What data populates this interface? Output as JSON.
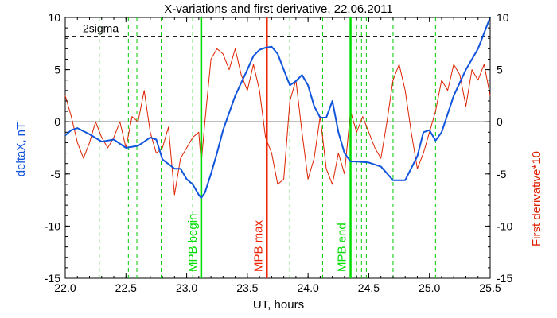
{
  "chart_data": {
    "type": "line",
    "title": "X-variations and first derivative, 22.06.2011",
    "xlabel": "UT, hours",
    "ylabel_left": "deltaX, nT",
    "ylabel_right": "First derivative*10",
    "xlim": [
      22.0,
      25.5
    ],
    "ylim_left": [
      -15,
      10
    ],
    "ylim_right": [
      -15,
      10
    ],
    "x_ticks": [
      "22.0",
      "22.5",
      "23.0",
      "23.5",
      "24.0",
      "24.5",
      "25.0",
      "25.5"
    ],
    "y_ticks_left": [
      "10",
      "5",
      "0",
      "-5",
      "-10",
      "-15"
    ],
    "y_ticks_right": [
      "10",
      "5",
      "0",
      "-5",
      "-10",
      "-15"
    ],
    "sigma": {
      "label": "2sigma",
      "value": 8.2
    },
    "zero_line": 0,
    "markers": [
      {
        "x": 23.12,
        "label": "MPB begin",
        "color": "#00dd00"
      },
      {
        "x": 23.66,
        "label": "MPB max",
        "color": "#ee2200"
      },
      {
        "x": 24.35,
        "label": "MPB end",
        "color": "#00dd00"
      }
    ],
    "dashed_verticals": [
      22.28,
      22.52,
      22.59,
      22.79,
      23.05,
      23.85,
      24.12,
      24.4,
      24.44,
      24.48,
      24.7,
      25.05
    ],
    "series": [
      {
        "name": "deltaX, nT",
        "color": "#1155dd",
        "x": [
          22.0,
          22.05,
          22.1,
          22.2,
          22.3,
          22.4,
          22.5,
          22.6,
          22.7,
          22.75,
          22.8,
          22.9,
          22.95,
          23.0,
          23.05,
          23.1,
          23.12,
          23.15,
          23.2,
          23.25,
          23.3,
          23.4,
          23.5,
          23.55,
          23.6,
          23.65,
          23.7,
          23.75,
          23.8,
          23.85,
          23.9,
          23.95,
          24.0,
          24.05,
          24.1,
          24.15,
          24.2,
          24.25,
          24.3,
          24.35,
          24.4,
          24.5,
          24.6,
          24.7,
          24.8,
          24.9,
          24.95,
          25.0,
          25.05,
          25.1,
          25.2,
          25.3,
          25.4,
          25.5
        ],
        "values": [
          -1.3,
          -0.8,
          -0.6,
          -1.2,
          -1.9,
          -1.7,
          -2.5,
          -2.3,
          -1.5,
          -1.7,
          -3.6,
          -4.5,
          -4.5,
          -5.5,
          -6.0,
          -7.0,
          -7.3,
          -6.8,
          -5.0,
          -3.0,
          -0.8,
          2.5,
          5.0,
          6.3,
          6.9,
          7.1,
          7.2,
          6.5,
          5.0,
          3.5,
          3.9,
          4.5,
          3.5,
          1.5,
          0.4,
          0.4,
          2.0,
          -1.0,
          -3.0,
          -3.8,
          -3.8,
          -3.9,
          -4.3,
          -5.6,
          -5.6,
          -3.3,
          -1.0,
          -0.8,
          -1.8,
          -1.0,
          2.5,
          5.0,
          7.0,
          10.0
        ]
      },
      {
        "name": "First derivative*10",
        "color": "#dd2200",
        "x": [
          22.0,
          22.05,
          22.1,
          22.15,
          22.2,
          22.25,
          22.3,
          22.35,
          22.4,
          22.45,
          22.5,
          22.55,
          22.6,
          22.65,
          22.7,
          22.75,
          22.8,
          22.85,
          22.9,
          22.95,
          23.0,
          23.05,
          23.1,
          23.12,
          23.15,
          23.2,
          23.25,
          23.3,
          23.35,
          23.4,
          23.45,
          23.5,
          23.55,
          23.6,
          23.65,
          23.7,
          23.75,
          23.8,
          23.85,
          23.9,
          23.95,
          24.0,
          24.05,
          24.1,
          24.15,
          24.2,
          24.25,
          24.3,
          24.35,
          24.4,
          24.45,
          24.5,
          24.55,
          24.6,
          24.65,
          24.7,
          24.75,
          24.8,
          24.85,
          24.9,
          24.95,
          25.0,
          25.05,
          25.1,
          25.15,
          25.2,
          25.25,
          25.3,
          25.35,
          25.4,
          25.45,
          25.5
        ],
        "values": [
          2.5,
          0.5,
          -2.0,
          -3.5,
          -2.0,
          0.0,
          -1.5,
          -2.5,
          -1.5,
          0.0,
          -2.5,
          0.5,
          0.0,
          3.0,
          -1.0,
          -3.0,
          -2.5,
          -0.5,
          -7.0,
          -3.5,
          -2.5,
          -1.5,
          -1.0,
          -4.0,
          0.0,
          6.0,
          7.0,
          6.5,
          5.0,
          7.0,
          4.5,
          3.0,
          5.5,
          3.0,
          -1.5,
          -3.0,
          -6.0,
          -5.5,
          2.0,
          4.0,
          -1.0,
          -5.5,
          -3.5,
          0.5,
          -4.5,
          -6.0,
          -3.0,
          -5.0,
          1.0,
          -1.0,
          0.5,
          -1.0,
          -2.5,
          -3.5,
          0.0,
          4.0,
          5.5,
          3.0,
          -1.0,
          -4.5,
          -3.0,
          -1.0,
          1.0,
          4.0,
          3.0,
          5.5,
          4.5,
          1.5,
          5.0,
          4.0,
          5.5,
          2.5
        ]
      }
    ]
  }
}
